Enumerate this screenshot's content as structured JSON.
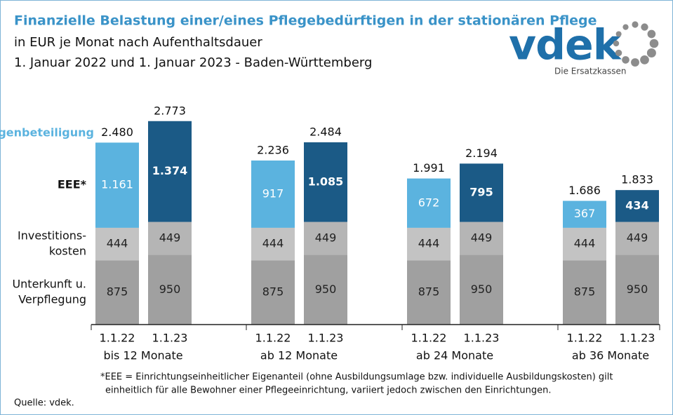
{
  "chart_data": {
    "type": "stacked_bar",
    "title": "Finanzielle Belastung einer/eines Pflegebedürftigen in der stationären Pflege",
    "subtitle": [
      "in EUR je Monat nach Aufenthaltsdauer",
      "1. Januar 2022 und 1. Januar 2023 - Baden-Württemberg"
    ],
    "annotation": "Eigenbeteiligung",
    "categories": [
      "1.1.22",
      "1.1.23",
      "1.1.22",
      "1.1.23",
      "1.1.22",
      "1.1.23",
      "1.1.22",
      "1.1.23"
    ],
    "groups": [
      "bis 12 Monate",
      "ab 12 Monate",
      "ab 24 Monate",
      "ab 36 Monate"
    ],
    "series": [
      {
        "name": [
          "Unterkunft u.",
          "Verpflegung"
        ],
        "colors": [
          "#a0a0a0",
          "#a0a0a0",
          "#a0a0a0",
          "#a0a0a0",
          "#a0a0a0",
          "#a0a0a0",
          "#a0a0a0",
          "#a0a0a0"
        ],
        "values": [
          875,
          950,
          875,
          950,
          875,
          950,
          875,
          950
        ]
      },
      {
        "name": [
          "Investitions-",
          "kosten"
        ],
        "colors": [
          "#c3c3c3",
          "#b5b5b5",
          "#c3c3c3",
          "#b5b5b5",
          "#c3c3c3",
          "#b5b5b5",
          "#c3c3c3",
          "#b5b5b5"
        ],
        "values": [
          444,
          449,
          444,
          449,
          444,
          449,
          444,
          449
        ]
      },
      {
        "name": [
          "EEE*"
        ],
        "colors": [
          "#5bb3df",
          "#1b5a86",
          "#5bb3df",
          "#1b5a86",
          "#5bb3df",
          "#1b5a86",
          "#5bb3df",
          "#1b5a86"
        ],
        "values": [
          1161,
          1374,
          917,
          1085,
          672,
          795,
          367,
          434
        ],
        "value_labels": [
          "1.161",
          "1.374",
          "917",
          "1.085",
          "672",
          "795",
          "367",
          "434"
        ]
      }
    ],
    "totals": {
      "values": [
        2480,
        2773,
        2236,
        2484,
        1991,
        2194,
        1686,
        1833
      ],
      "value_labels": [
        "2.480",
        "2.773",
        "2.236",
        "2.484",
        "1.991",
        "2.194",
        "1.686",
        "1.833"
      ]
    },
    "ylim": [
      0,
      3000
    ],
    "footnote": [
      "*EEE = Einrichtungseinheitlicher  Eigenanteil (ohne Ausbildungsumlage bzw. individuelle Ausbildungskosten) gilt",
      "einheitlich für alle Bewohner einer Pflegeeinrichtung, variiert jedoch zwischen den Einrichtungen."
    ],
    "source": "Quelle: vdek."
  },
  "logo": {
    "text": "vdek",
    "tagline": "Die Ersatzkassen"
  }
}
